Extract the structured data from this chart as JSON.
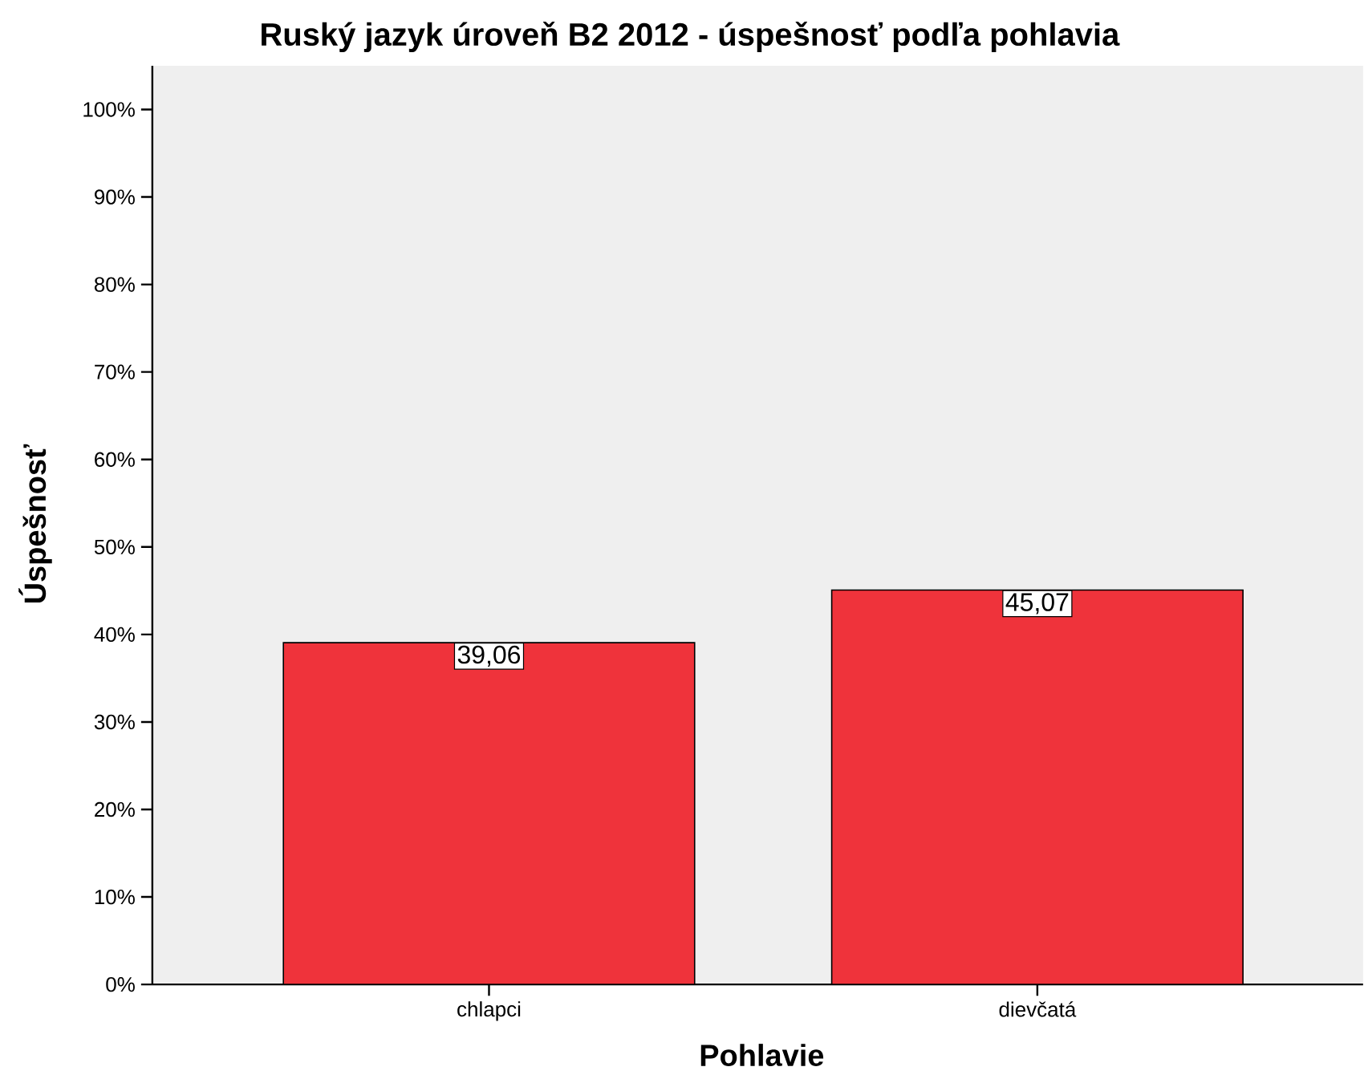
{
  "chart_data": {
    "type": "bar",
    "title": "Ruský jazyk úroveň B2 2012 - úspešnosť podľa pohlavia",
    "xlabel": "Pohlavie",
    "ylabel": "Úspešnosť",
    "categories": [
      "chlapci",
      "dievčatá"
    ],
    "values": [
      39.06,
      45.07
    ],
    "value_labels": [
      "39,06",
      "45,07"
    ],
    "color": "#ef333b",
    "ylim": [
      0,
      105
    ],
    "yticks": [
      {
        "value": 0,
        "label": "0%"
      },
      {
        "value": 10,
        "label": "10%"
      },
      {
        "value": 20,
        "label": "20%"
      },
      {
        "value": 30,
        "label": "30%"
      },
      {
        "value": 40,
        "label": "40%"
      },
      {
        "value": 50,
        "label": "50%"
      },
      {
        "value": 60,
        "label": "60%"
      },
      {
        "value": 70,
        "label": "70%"
      },
      {
        "value": 80,
        "label": "80%"
      },
      {
        "value": 90,
        "label": "90%"
      },
      {
        "value": 100,
        "label": "100%"
      }
    ]
  }
}
